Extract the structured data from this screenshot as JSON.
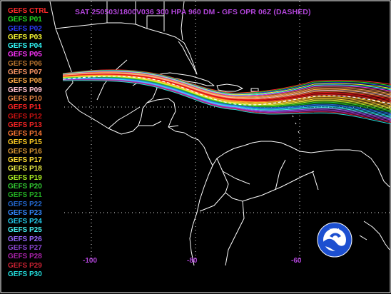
{
  "title": "SAT 250503/1800V036  300 HPA 960 DM - GFS OPR 06Z (DASHED)",
  "members": [
    {
      "label": "GEFS CTRL",
      "color": "#ff2a2a"
    },
    {
      "label": "GEFS P01",
      "color": "#22dd22"
    },
    {
      "label": "GEFS P02",
      "color": "#2b3bff"
    },
    {
      "label": "GEFS P03",
      "color": "#ffff33"
    },
    {
      "label": "GEFS P04",
      "color": "#33ffff"
    },
    {
      "label": "GEFS P05",
      "color": "#ff33ff"
    },
    {
      "label": "GEFS P06",
      "color": "#b8732e"
    },
    {
      "label": "GEFS P07",
      "color": "#ff9966"
    },
    {
      "label": "GEFS P08",
      "color": "#ffaa44"
    },
    {
      "label": "GEFS P09",
      "color": "#ffc0cb"
    },
    {
      "label": "GEFS P10",
      "color": "#ee8844"
    },
    {
      "label": "GEFS P11",
      "color": "#ff2222"
    },
    {
      "label": "GEFS P12",
      "color": "#cc1111"
    },
    {
      "label": "GEFS P13",
      "color": "#ee2222"
    },
    {
      "label": "GEFS P14",
      "color": "#ff7733"
    },
    {
      "label": "GEFS P15",
      "color": "#ffcc22"
    },
    {
      "label": "GEFS P16",
      "color": "#dd9933"
    },
    {
      "label": "GEFS P17",
      "color": "#ffdd33"
    },
    {
      "label": "GEFS P18",
      "color": "#eeee44"
    },
    {
      "label": "GEFS P19",
      "color": "#aaee22"
    },
    {
      "label": "GEFS P20",
      "color": "#33cc33"
    },
    {
      "label": "GEFS P21",
      "color": "#22aa22"
    },
    {
      "label": "GEFS P22",
      "color": "#2266cc"
    },
    {
      "label": "GEFS P23",
      "color": "#3388ff"
    },
    {
      "label": "GEFS P24",
      "color": "#22ccee"
    },
    {
      "label": "GEFS P25",
      "color": "#44eeee"
    },
    {
      "label": "GEFS P26",
      "color": "#9966ff"
    },
    {
      "label": "GEFS P27",
      "color": "#8844cc"
    },
    {
      "label": "GEFS P28",
      "color": "#aa22aa"
    },
    {
      "label": "GEFS P29",
      "color": "#cc2233"
    },
    {
      "label": "GEFS P30",
      "color": "#22dddd"
    }
  ],
  "x_ticks": [
    {
      "label": "-100",
      "lon": -100
    },
    {
      "label": "-80",
      "lon": -80
    },
    {
      "label": "-60",
      "lon": -60
    }
  ],
  "contour_level": "960 DM"
}
